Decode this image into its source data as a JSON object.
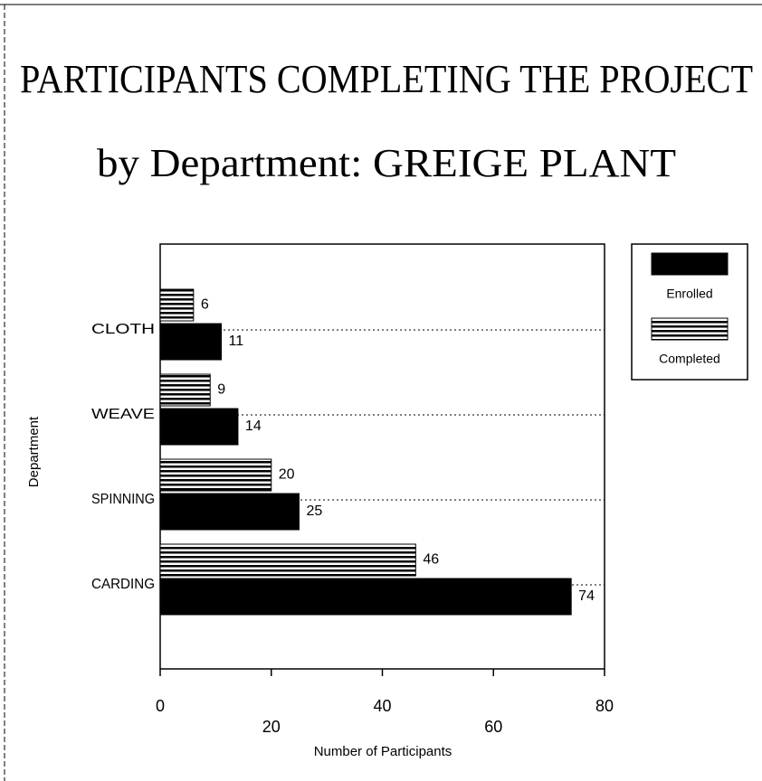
{
  "chart_data": {
    "type": "bar",
    "orientation": "horizontal",
    "title": "PARTICIPANTS COMPLETING THE PROJECT",
    "subtitle": "by Department: GREIGE PLANT",
    "x_label": "Number of Participants",
    "y_label": "Department",
    "categories": [
      "CLOTH",
      "WEAVE",
      "SPINNING",
      "CARDING"
    ],
    "series": [
      {
        "name": "Enrolled",
        "color": "#000000",
        "hatch": "solid",
        "values": [
          11,
          14,
          25,
          74
        ]
      },
      {
        "name": "Completed",
        "color": "#000000",
        "hatch": "horizontal",
        "values": [
          6,
          9,
          20,
          46
        ]
      }
    ],
    "xlim": [
      0,
      80
    ],
    "xticks": [
      0,
      20,
      40,
      60,
      80
    ],
    "grid": true,
    "legend": "upper right"
  }
}
